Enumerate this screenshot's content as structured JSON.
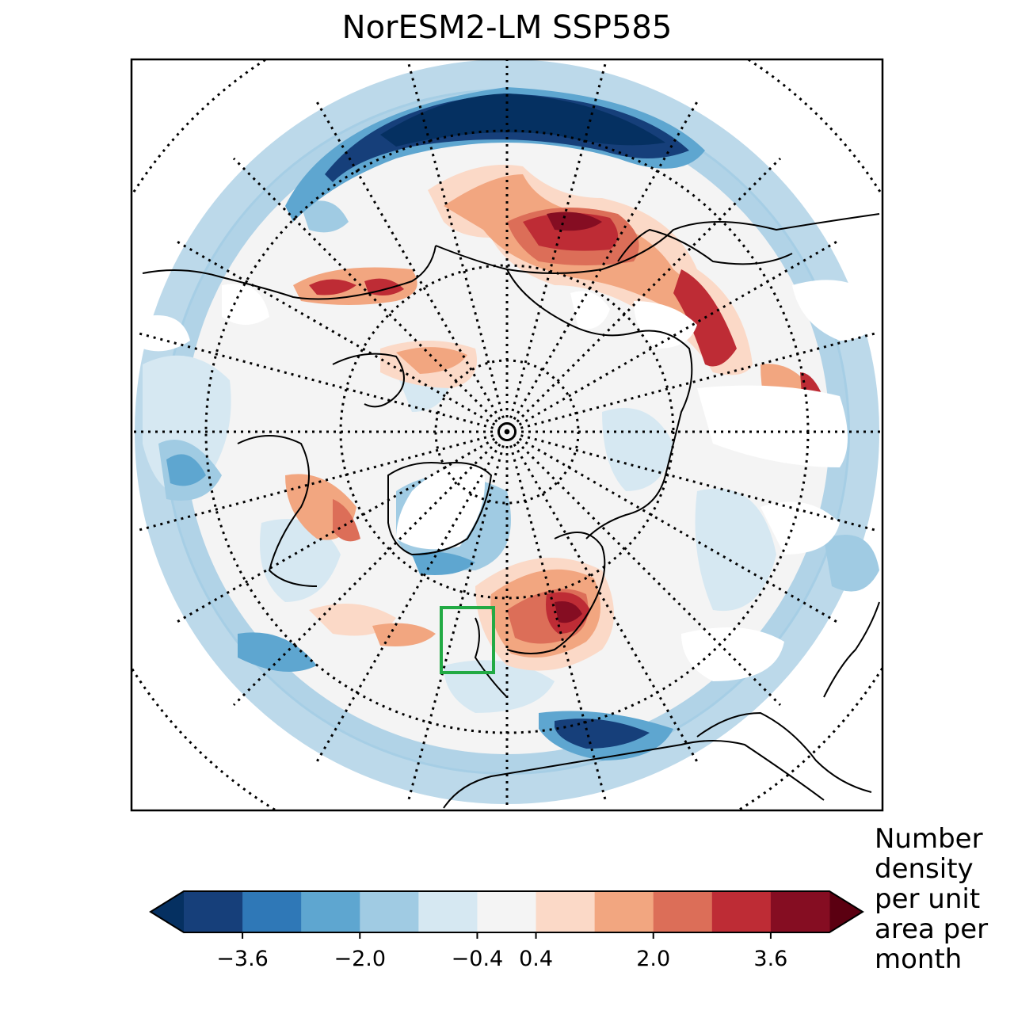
{
  "title": "NorESM2-LM SSP585",
  "colorbar": {
    "label": "Number density per unit area per month",
    "tick_labels": [
      "−3.6",
      "−2.0",
      "−0.4",
      "0.4",
      "2.0",
      "3.6"
    ],
    "tick_values": [
      -3.6,
      -2.0,
      -0.4,
      0.4,
      2.0,
      3.6
    ],
    "levels": [
      -4.4,
      -3.6,
      -2.8,
      -2.0,
      -1.2,
      -0.4,
      0.4,
      1.2,
      2.0,
      2.8,
      3.6,
      4.4
    ],
    "extend": "both",
    "colors": [
      "#053061",
      "#163f7a",
      "#2f78b7",
      "#5ea6d0",
      "#a0cbe3",
      "#d6e8f2",
      "#f4f4f4",
      "#fbd9c7",
      "#f2a680",
      "#dc6e58",
      "#be2c35",
      "#850d22",
      "#5b0011"
    ]
  },
  "map": {
    "projection": "north-polar-stereographic",
    "gridlines": "dotted",
    "coastlines": true,
    "region_box_color": "#22aa44"
  }
}
